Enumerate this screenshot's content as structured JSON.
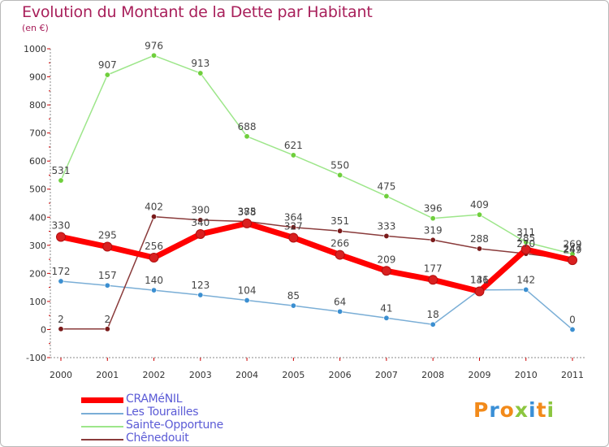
{
  "title": "Evolution du Montant de la Dette par Habitant",
  "unit": "(en €)",
  "logo": {
    "text": "Proxiti",
    "letters": [
      {
        "ch": "P",
        "color": "#f28a1a"
      },
      {
        "ch": "r",
        "color": "#3a8fd6"
      },
      {
        "ch": "o",
        "color": "#f28a1a"
      },
      {
        "ch": "x",
        "color": "#8cc63f"
      },
      {
        "ch": "i",
        "color": "#3a8fd6"
      },
      {
        "ch": "t",
        "color": "#f28a1a"
      },
      {
        "ch": "i",
        "color": "#8cc63f"
      }
    ]
  },
  "chart_data": {
    "type": "line",
    "title": "Evolution du Montant de la Dette par Habitant",
    "ylabel": "(en €)",
    "xlabel": "",
    "x": [
      "2000",
      "2001",
      "2002",
      "2003",
      "2004",
      "2005",
      "2006",
      "2007",
      "2008",
      "2009",
      "2010",
      "2011"
    ],
    "ylim": [
      -100,
      1000
    ],
    "yticks": [
      -100,
      0,
      100,
      200,
      300,
      400,
      500,
      600,
      700,
      800,
      900,
      1000
    ],
    "grid": false,
    "legend_position": "bottom-left",
    "series": [
      {
        "name": "CRAMéNIL",
        "color": "#ff0000",
        "width": 7,
        "marker_fill": "#d92020",
        "values": [
          330,
          295,
          256,
          340,
          378,
          327,
          266,
          209,
          177,
          136,
          285,
          247
        ]
      },
      {
        "name": "Les Tourailles",
        "color": "#7aaed6",
        "width": 1.5,
        "marker_fill": "#3b8fd1",
        "values": [
          172,
          157,
          140,
          123,
          104,
          85,
          64,
          41,
          18,
          141,
          142,
          0
        ]
      },
      {
        "name": "Sainte-Opportune",
        "color": "#9de68a",
        "width": 1.5,
        "marker_fill": "#6fcf3c",
        "values": [
          531,
          907,
          976,
          913,
          688,
          621,
          550,
          475,
          396,
          409,
          311,
          269
        ]
      },
      {
        "name": "Chênedouit",
        "color": "#8a3b3b",
        "width": 1.5,
        "marker_fill": "#7a1a1a",
        "values": [
          2,
          2,
          402,
          390,
          385,
          364,
          351,
          333,
          319,
          288,
          270,
          249
        ]
      }
    ]
  }
}
